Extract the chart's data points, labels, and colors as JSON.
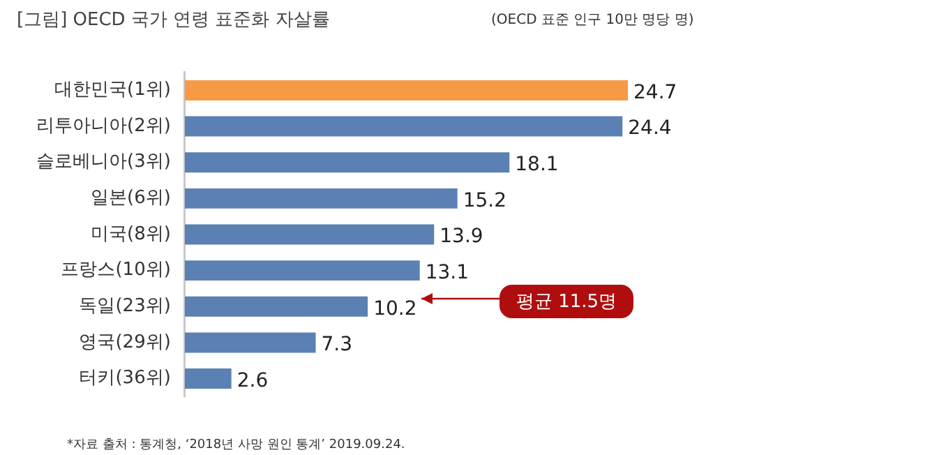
{
  "chart_data": {
    "type": "bar",
    "orientation": "horizontal",
    "title": "[그림] OECD 국가 연령 표준화 자살률",
    "subtitle": "(OECD 표준 인구 10만 명당 명)",
    "categories": [
      "대한민국(1위)",
      "리투아니아(2위)",
      "슬로베니아(3위)",
      "일본(6위)",
      "미국(8위)",
      "프랑스(10위)",
      "독일(23위)",
      "영국(29위)",
      "터키(36위)"
    ],
    "values": [
      24.7,
      24.4,
      18.1,
      15.2,
      13.9,
      13.1,
      10.2,
      7.3,
      2.6
    ],
    "colors": [
      "#f79a45",
      "#5b80b4",
      "#5b80b4",
      "#5b80b4",
      "#5b80b4",
      "#5b80b4",
      "#5b80b4",
      "#5b80b4",
      "#5b80b4"
    ],
    "data_labels": true,
    "legend": false,
    "annotations": [
      "평균 11.5명",
      "*자료 출처 : 통계청, ‘2018년 사망 원인 통계’ 2019.09.24."
    ]
  }
}
